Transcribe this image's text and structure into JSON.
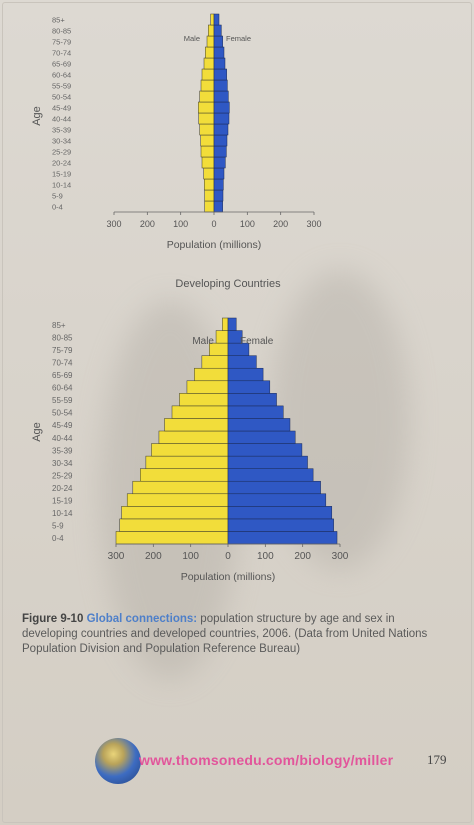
{
  "chart_data": [
    {
      "type": "bar",
      "orientation": "horizontal-pyramid",
      "title": "",
      "categories": [
        "0-4",
        "5-9",
        "10-14",
        "15-19",
        "20-24",
        "25-29",
        "30-34",
        "35-39",
        "40-44",
        "45-49",
        "50-54",
        "55-59",
        "60-64",
        "65-69",
        "70-74",
        "75-79",
        "80-85",
        "85+"
      ],
      "series": [
        {
          "name": "Male",
          "color": "#f2dd3a",
          "values": [
            28,
            28,
            29,
            31,
            36,
            39,
            40,
            43,
            46,
            47,
            43,
            39,
            36,
            30,
            26,
            21,
            17,
            10
          ]
        },
        {
          "name": "Female",
          "color": "#2f58c4",
          "values": [
            26,
            27,
            28,
            30,
            34,
            37,
            39,
            42,
            45,
            46,
            43,
            40,
            38,
            33,
            30,
            26,
            22,
            15
          ]
        }
      ],
      "xlabel": "Population (millions)",
      "ylabel": "Age",
      "xticks": [
        "300",
        "200",
        "100",
        "0",
        "100",
        "200",
        "300"
      ],
      "xlim": [
        -300,
        300
      ]
    },
    {
      "type": "bar",
      "orientation": "horizontal-pyramid",
      "title": "Developing Countries",
      "categories": [
        "0-4",
        "5-9",
        "10-14",
        "15-19",
        "20-24",
        "25-29",
        "30-34",
        "35-39",
        "40-44",
        "45-49",
        "50-54",
        "55-59",
        "60-64",
        "65-69",
        "70-74",
        "75-79",
        "80-85",
        "85+"
      ],
      "series": [
        {
          "name": "Male",
          "color": "#f2dd3a",
          "values": [
            300,
            290,
            285,
            270,
            255,
            235,
            220,
            205,
            185,
            170,
            150,
            130,
            110,
            90,
            70,
            50,
            32,
            15
          ]
        },
        {
          "name": "Female",
          "color": "#2f58c4",
          "values": [
            292,
            283,
            278,
            262,
            248,
            228,
            213,
            198,
            180,
            166,
            148,
            130,
            112,
            94,
            76,
            56,
            38,
            22
          ]
        }
      ],
      "xlabel": "Population (millions)",
      "ylabel": "Age",
      "xticks": [
        "300",
        "200",
        "100",
        "0",
        "100",
        "200",
        "300"
      ],
      "xlim": [
        -300,
        300
      ]
    }
  ],
  "caption": {
    "figure": "Figure 9-10",
    "lead": "Global connections:",
    "text": " population structure by age and sex in developing countries and developed countries, 2006. (Data from United Nations Population Division and Population Reference Bureau)"
  },
  "footer": {
    "url": "www.thomsonedu.com/biology/miller",
    "page": "179",
    "icon": "globe-icon"
  }
}
